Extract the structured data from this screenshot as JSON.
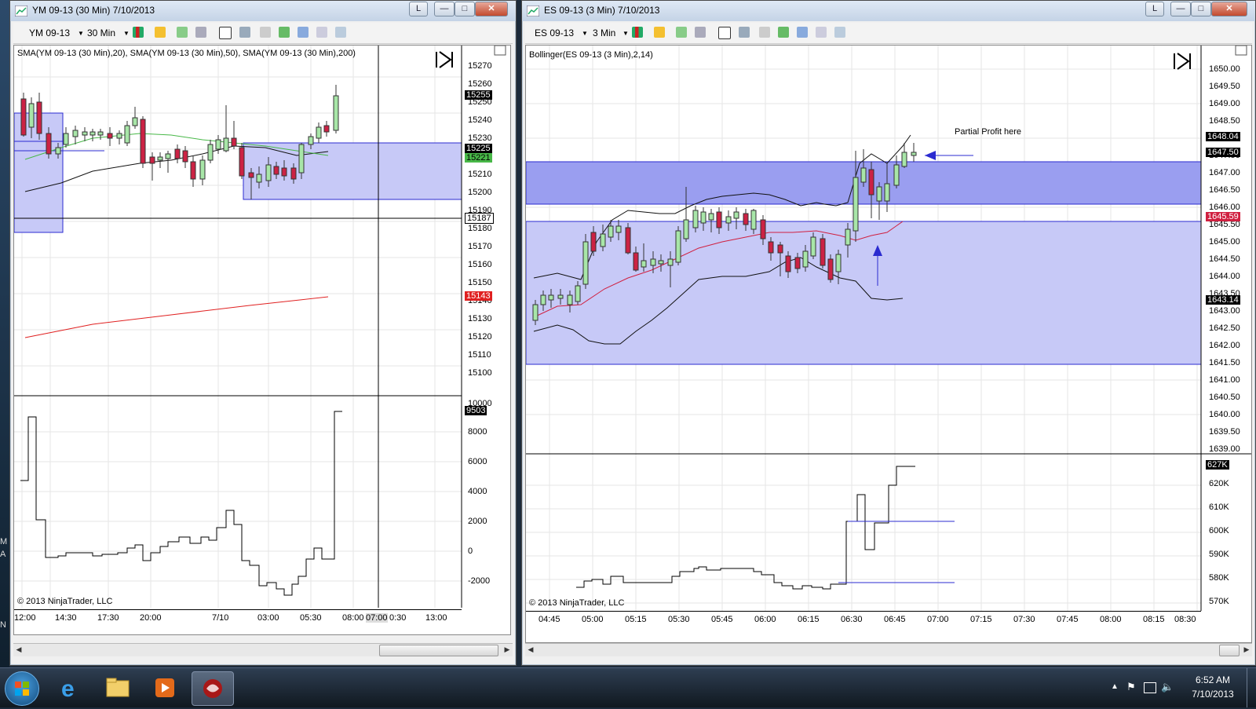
{
  "left_window": {
    "title": "YM 09-13 (30 Min)  7/10/2013",
    "toolbar": {
      "instrument": "YM 09-13",
      "interval": "30 Min"
    },
    "link_label": "L",
    "indicator_label": "SMA(YM 09-13 (30 Min),20), SMA(YM 09-13 (30 Min),50), SMA(YM 09-13 (30 Min),200)",
    "price_labels": [
      "15270",
      "15260",
      "15250",
      "15240",
      "15230",
      "15220",
      "15210",
      "15200",
      "15190",
      "15180",
      "15170",
      "15160",
      "15150",
      "15140",
      "15130",
      "15120",
      "15110",
      "15100"
    ],
    "price_markers": {
      "last": "15255",
      "box_top": "15225",
      "sma": "15221",
      "line": "15187",
      "sma200": "15143"
    },
    "volume_labels": [
      "10000",
      "8000",
      "6000",
      "4000",
      "2000",
      "0",
      "-2000"
    ],
    "volume_marker": "9503",
    "copyright": "© 2013 NinjaTrader, LLC",
    "time_labels": [
      "12:00",
      "14:30",
      "17:30",
      "20:00",
      "7/10",
      "03:00",
      "05:30",
      "08:00",
      "07:00",
      "0:30",
      "13:00"
    ]
  },
  "right_window": {
    "title": "ES 09-13 (3 Min)  7/10/2013",
    "toolbar": {
      "instrument": "ES 09-13",
      "interval": "3 Min"
    },
    "link_label": "L",
    "indicator_label": "Bollinger(ES 09-13 (3 Min),2,14)",
    "annotation": "Partial Profit here",
    "price_labels": [
      "1650.00",
      "1649.50",
      "1649.00",
      "1648.50",
      "1648.00",
      "1647.50",
      "1647.00",
      "1646.50",
      "1646.00",
      "1645.50",
      "1645.00",
      "1644.50",
      "1644.00",
      "1643.50",
      "1643.00",
      "1642.50",
      "1642.00",
      "1641.50",
      "1641.00",
      "1640.50",
      "1640.00",
      "1639.50",
      "1639.00"
    ],
    "price_markers": {
      "upper": "1648.04",
      "last": "1647.50",
      "mid": "1645.59",
      "lower": "1643.14"
    },
    "volume_labels": [
      "620K",
      "610K",
      "600K",
      "590K",
      "580K",
      "570K"
    ],
    "volume_marker": "627K",
    "copyright": "© 2013 NinjaTrader, LLC",
    "time_labels": [
      "04:45",
      "05:00",
      "05:15",
      "05:30",
      "05:45",
      "06:00",
      "06:15",
      "06:30",
      "06:45",
      "07:00",
      "07:15",
      "07:30",
      "07:45",
      "08:00",
      "08:15",
      "08:30"
    ]
  },
  "taskbar": {
    "time": "6:52 AM",
    "date": "7/10/2013"
  },
  "desktop_letters": [
    "M",
    "A",
    "N"
  ]
}
